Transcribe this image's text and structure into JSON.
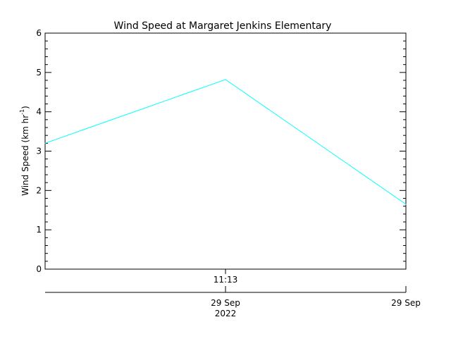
{
  "chart_data": {
    "type": "line",
    "title": "Wind Speed at Margaret Jenkins Elementary",
    "xlabel": "",
    "ylabel": "Wind Speed (km hr",
    "ylabel_superscript": "-1",
    "ylabel_suffix": ")",
    "ylim": [
      0,
      6
    ],
    "y_ticks": [
      "0",
      "1",
      "2",
      "3",
      "4",
      "5",
      "6"
    ],
    "x_time_label": "11:13",
    "x_date_labels": [
      {
        "day": "29 Sep",
        "year": "2022"
      },
      {
        "day": "29 Sep",
        "year": ""
      }
    ],
    "series": [
      {
        "color": "#00ffff",
        "x": [
          0,
          0.5,
          1.0
        ],
        "values": [
          3.2,
          4.82,
          1.65
        ]
      }
    ],
    "grid": false,
    "legend": "none"
  }
}
